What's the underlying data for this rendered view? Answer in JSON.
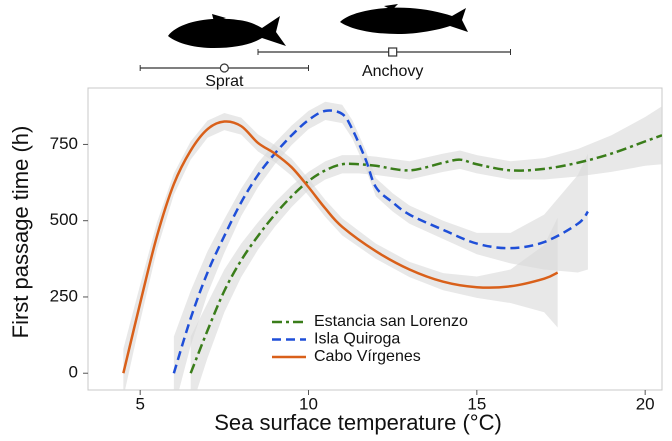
{
  "chart_data": {
    "type": "line",
    "x_label": "Sea surface temperature (°C)",
    "y_label": "First passage time (h)",
    "xlim": [
      3.45,
      20.5
    ],
    "ylim": [
      -55,
      935
    ],
    "xticks": [
      5,
      10,
      15,
      20
    ],
    "yticks": [
      0,
      250,
      500,
      750
    ],
    "band_color": "#d9d9d9",
    "ranges": [
      {
        "name": "Sprat",
        "min": 5,
        "center": 7.5,
        "max": 10,
        "marker": "circle"
      },
      {
        "name": "Anchovy",
        "min": 8.5,
        "center": 12.5,
        "max": 16,
        "marker": "square"
      }
    ],
    "series": [
      {
        "name": "Estancia san Lorenzo",
        "color": "#3a7d1a",
        "style": "dashdot",
        "x": [
          6.5,
          7,
          7.5,
          8,
          8.5,
          9,
          9.5,
          10,
          10.5,
          11,
          11.5,
          12,
          13,
          14,
          14.5,
          15,
          16,
          17,
          18,
          19,
          20,
          20.5
        ],
        "y": [
          0,
          140,
          270,
          370,
          450,
          520,
          580,
          630,
          665,
          685,
          685,
          680,
          665,
          690,
          700,
          685,
          665,
          670,
          690,
          720,
          760,
          780
        ],
        "lower": [
          -120,
          50,
          200,
          315,
          405,
          480,
          545,
          600,
          635,
          655,
          655,
          650,
          635,
          660,
          670,
          655,
          635,
          635,
          645,
          660,
          680,
          685
        ],
        "upper": [
          120,
          230,
          340,
          425,
          495,
          560,
          615,
          660,
          695,
          715,
          715,
          710,
          695,
          720,
          730,
          715,
          695,
          705,
          735,
          780,
          840,
          875
        ]
      },
      {
        "name": "Isla Quiroga",
        "color": "#1f4fd8",
        "style": "dashed",
        "x": [
          6,
          6.5,
          7,
          7.5,
          8,
          8.5,
          9,
          9.5,
          10,
          10.5,
          11,
          11.3,
          11.7,
          12,
          12.5,
          13,
          14,
          15,
          16,
          17,
          18,
          18.3
        ],
        "y": [
          0,
          180,
          330,
          450,
          560,
          650,
          720,
          780,
          830,
          860,
          850,
          800,
          700,
          610,
          560,
          520,
          470,
          425,
          410,
          430,
          490,
          530
        ],
        "lower": [
          -120,
          90,
          260,
          395,
          515,
          610,
          685,
          748,
          800,
          830,
          820,
          770,
          670,
          580,
          530,
          490,
          440,
          390,
          360,
          340,
          330,
          340
        ],
        "upper": [
          120,
          270,
          400,
          505,
          605,
          690,
          755,
          812,
          860,
          890,
          880,
          830,
          730,
          640,
          590,
          550,
          500,
          460,
          460,
          520,
          650,
          720
        ]
      },
      {
        "name": "Cabo Vírgenes",
        "color": "#d9601a",
        "style": "solid",
        "x": [
          4.5,
          5,
          5.5,
          6,
          6.5,
          7,
          7.5,
          8,
          8.5,
          9,
          9.5,
          10,
          10.5,
          11,
          12,
          13,
          14,
          15,
          16,
          17,
          17.4
        ],
        "y": [
          0,
          230,
          450,
          620,
          730,
          800,
          825,
          810,
          755,
          720,
          675,
          610,
          540,
          480,
          400,
          340,
          300,
          282,
          285,
          310,
          330
        ],
        "lower": [
          -80,
          170,
          405,
          585,
          700,
          772,
          797,
          782,
          727,
          692,
          647,
          582,
          512,
          452,
          375,
          315,
          272,
          247,
          230,
          200,
          150
        ],
        "upper": [
          80,
          290,
          495,
          655,
          760,
          828,
          853,
          838,
          783,
          748,
          703,
          638,
          568,
          508,
          425,
          365,
          328,
          317,
          340,
          420,
          510
        ]
      }
    ]
  }
}
